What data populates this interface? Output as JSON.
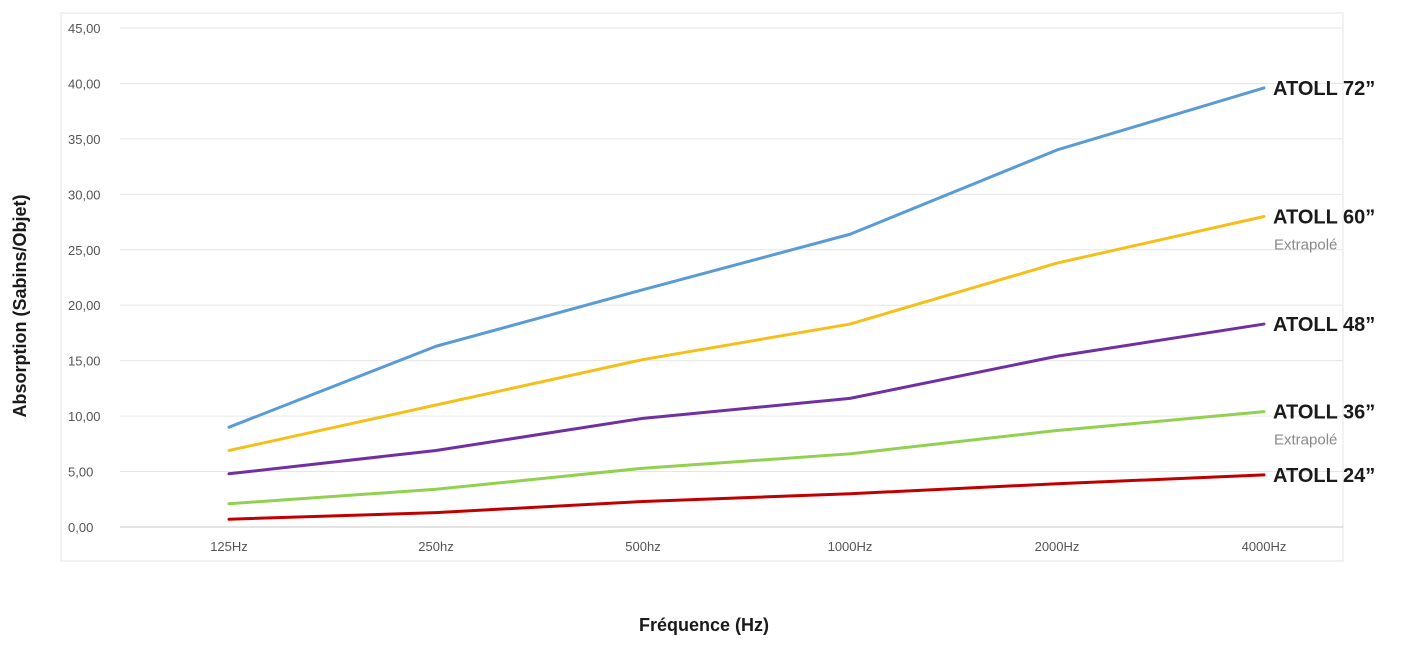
{
  "chart_data": {
    "type": "line",
    "title": "",
    "xlabel": "Fréquence (Hz)",
    "ylabel": "Absorption (Sabins/Objet)",
    "categories": [
      "125Hz",
      "250hz",
      "500hz",
      "1000Hz",
      "2000Hz",
      "4000Hz"
    ],
    "ylim": [
      0,
      45
    ],
    "yticks": [
      "0,00",
      "5,00",
      "10,00",
      "15,00",
      "20,00",
      "25,00",
      "30,00",
      "35,00",
      "40,00",
      "45,00"
    ],
    "grid": true,
    "legend": "labels at end of lines (right)",
    "series": [
      {
        "name": "ATOLL 72”",
        "note": "",
        "color": "#5b9bd5",
        "values": [
          9.0,
          16.3,
          21.4,
          26.4,
          34.0,
          39.6
        ]
      },
      {
        "name": "ATOLL 60”",
        "note": "Extrapolé",
        "color": "#f5bf1a",
        "values": [
          6.9,
          11.0,
          15.1,
          18.3,
          23.8,
          28.0
        ]
      },
      {
        "name": "ATOLL 48”",
        "note": "",
        "color": "#7030a0",
        "values": [
          4.8,
          6.9,
          9.8,
          11.6,
          15.4,
          18.3
        ]
      },
      {
        "name": "ATOLL 36”",
        "note": "Extrapolé",
        "color": "#92d050",
        "values": [
          2.1,
          3.4,
          5.3,
          6.6,
          8.7,
          10.4
        ]
      },
      {
        "name": "ATOLL 24”",
        "note": "",
        "color": "#c00000",
        "values": [
          0.7,
          1.3,
          2.3,
          3.0,
          3.9,
          4.7
        ]
      }
    ]
  }
}
